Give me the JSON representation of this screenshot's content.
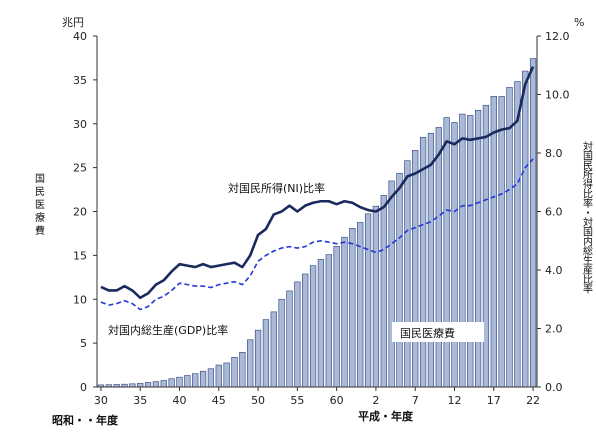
{
  "chart_data": {
    "type": "bar+line",
    "left_axis": {
      "unit": "兆円",
      "label": "国民医療費",
      "ticks": [
        "0",
        "5",
        "10",
        "15",
        "20",
        "25",
        "30",
        "35",
        "40"
      ],
      "range": [
        0,
        40
      ]
    },
    "right_axis": {
      "unit": "%",
      "label": "対国民所得比率・対国内総生産比率",
      "ticks": [
        "0.0",
        "2.0",
        "4.0",
        "6.0",
        "8.0",
        "10.0",
        "12.0"
      ],
      "range": [
        0,
        12
      ]
    },
    "x_axis": {
      "label_showa": "昭和・・年度",
      "label_heisei": "平成・年度",
      "tick_labels": [
        "30",
        "35",
        "40",
        "45",
        "50",
        "55",
        "60",
        "2",
        "7",
        "12",
        "17",
        "22"
      ],
      "tick_index": [
        0,
        5,
        10,
        15,
        20,
        25,
        30,
        35,
        40,
        45,
        50,
        55
      ]
    },
    "years": [
      "S30",
      "S31",
      "S32",
      "S33",
      "S34",
      "S35",
      "S36",
      "S37",
      "S38",
      "S39",
      "S40",
      "S41",
      "S42",
      "S43",
      "S44",
      "S45",
      "S46",
      "S47",
      "S48",
      "S49",
      "S50",
      "S51",
      "S52",
      "S53",
      "S54",
      "S55",
      "S56",
      "S57",
      "S58",
      "S59",
      "S60",
      "S61",
      "S62",
      "S63",
      "H1",
      "H2",
      "H3",
      "H4",
      "H5",
      "H6",
      "H7",
      "H8",
      "H9",
      "H10",
      "H11",
      "H12",
      "H13",
      "H14",
      "H15",
      "H16",
      "H17",
      "H18",
      "H19",
      "H20",
      "H21",
      "H22"
    ],
    "series": [
      {
        "name": "国民医療費",
        "axis": "left",
        "kind": "bar",
        "values": [
          0.24,
          0.26,
          0.29,
          0.32,
          0.36,
          0.41,
          0.52,
          0.61,
          0.74,
          0.94,
          1.12,
          1.31,
          1.52,
          1.8,
          2.08,
          2.5,
          2.74,
          3.38,
          3.95,
          5.38,
          6.48,
          7.68,
          8.56,
          10.0,
          10.95,
          11.98,
          12.88,
          13.83,
          14.54,
          15.09,
          16.02,
          17.07,
          18.08,
          18.75,
          19.73,
          20.61,
          21.83,
          23.48,
          24.36,
          25.79,
          26.96,
          28.46,
          28.92,
          29.58,
          30.7,
          30.14,
          31.1,
          30.95,
          31.54,
          32.11,
          33.13,
          33.11,
          34.14,
          34.81,
          36.0,
          37.42
        ]
      },
      {
        "name": "対国民所得(NI)比率",
        "axis": "right",
        "kind": "line",
        "values": [
          3.42,
          3.3,
          3.3,
          3.45,
          3.3,
          3.05,
          3.2,
          3.5,
          3.65,
          3.95,
          4.2,
          4.15,
          4.1,
          4.2,
          4.1,
          4.15,
          4.2,
          4.25,
          4.1,
          4.5,
          5.2,
          5.4,
          5.9,
          6.0,
          6.2,
          6.0,
          6.2,
          6.3,
          6.35,
          6.35,
          6.25,
          6.35,
          6.3,
          6.15,
          6.05,
          6.0,
          6.15,
          6.5,
          6.8,
          7.2,
          7.3,
          7.45,
          7.6,
          7.95,
          8.4,
          8.3,
          8.5,
          8.45,
          8.5,
          8.55,
          8.7,
          8.8,
          8.85,
          9.1,
          10.35,
          10.95
        ]
      },
      {
        "name": "対国内総生産(GDP)比率",
        "axis": "right",
        "kind": "line",
        "values": [
          2.9,
          2.8,
          2.85,
          2.95,
          2.85,
          2.65,
          2.75,
          3.0,
          3.1,
          3.3,
          3.55,
          3.5,
          3.45,
          3.45,
          3.4,
          3.5,
          3.55,
          3.6,
          3.5,
          3.8,
          4.3,
          4.5,
          4.65,
          4.75,
          4.8,
          4.75,
          4.8,
          4.95,
          5.0,
          4.95,
          4.9,
          4.95,
          4.9,
          4.8,
          4.7,
          4.6,
          4.7,
          4.9,
          5.1,
          5.35,
          5.45,
          5.55,
          5.65,
          5.85,
          6.05,
          6.0,
          6.2,
          6.2,
          6.3,
          6.4,
          6.5,
          6.6,
          6.75,
          6.95,
          7.5,
          7.8
        ]
      }
    ],
    "annotations": {
      "ni_label": "対国民所得(NI)比率",
      "gdp_label": "対国内総生産(GDP)比率",
      "bar_label": "国民医療費"
    },
    "colors": {
      "bar_fill": "#a9b9d8",
      "bar_stroke": "#2c3e78",
      "ni_line": "#1a2a5e",
      "gdp_line": "#2238d8"
    }
  }
}
